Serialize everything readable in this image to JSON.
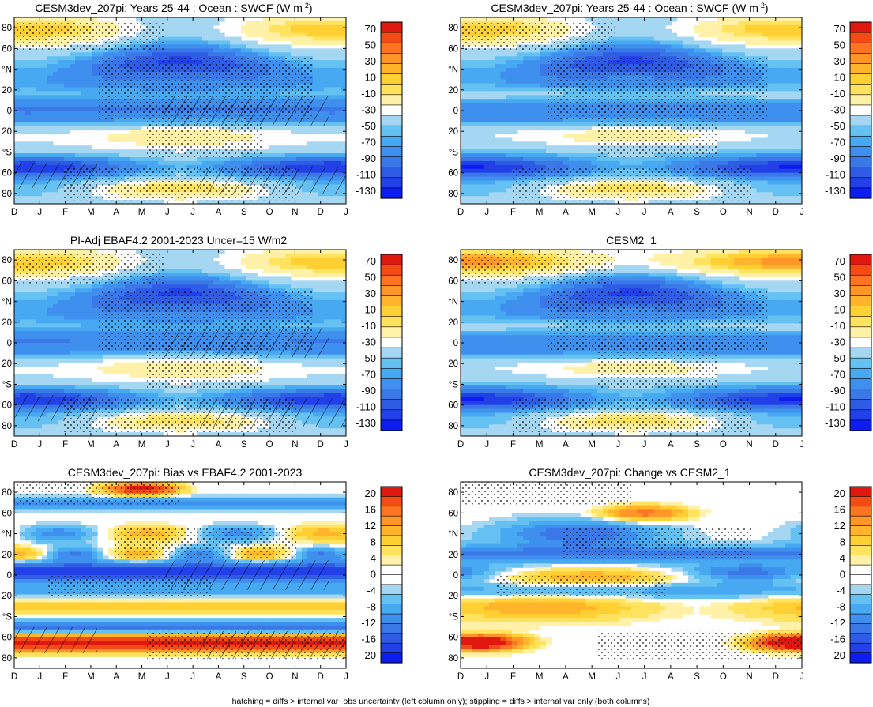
{
  "footer": "hatching = diffs > internal var+obs uncertainty (left column only); stippling = diffs > internal var only (both columns)",
  "months": [
    "D",
    "J",
    "F",
    "M",
    "A",
    "M",
    "J",
    "J",
    "A",
    "S",
    "O",
    "N",
    "D",
    "J"
  ],
  "lat_labels": [
    "80",
    "60",
    "°N",
    "20",
    "0",
    "20",
    "°S",
    "60",
    "80"
  ],
  "palettes": {
    "clim": [
      "#0d1cf0",
      "#2240e8",
      "#2e5ce5",
      "#3a78e8",
      "#3f90ee",
      "#47a9f2",
      "#64c1f2",
      "#a5d7f2",
      "#ffffff",
      "#fff2a8",
      "#ffe35f",
      "#ffd033",
      "#ffb42b",
      "#ff9626",
      "#ff7420",
      "#f44b14",
      "#e01810"
    ],
    "diff": [
      "#0d1cf0",
      "#2240e8",
      "#2e5ce5",
      "#3a78e8",
      "#3f90ee",
      "#47a9f2",
      "#64c1f2",
      "#a5d7f2",
      "#ffffff",
      "#ffffff",
      "#fff2a8",
      "#ffe35f",
      "#ffd033",
      "#ffb42b",
      "#ff9626",
      "#ff7420",
      "#f44b14",
      "#e01810"
    ]
  },
  "panels": [
    {
      "id": "p1",
      "title": "CESM3dev_207pi: Years 25-44 : Ocean : SWCF (W m",
      "title_sup": "-2",
      "title_end": ")",
      "col": 0,
      "row": 0,
      "kind": "clim",
      "variant": 0,
      "hatch": true,
      "stipple": true
    },
    {
      "id": "p2",
      "title": "CESM3dev_207pi: Years 25-44 : Ocean : SWCF (W m",
      "title_sup": "-2",
      "title_end": ")",
      "col": 1,
      "row": 0,
      "kind": "clim",
      "variant": 1,
      "hatch": false,
      "stipple": true
    },
    {
      "id": "p3",
      "title": "PI-Adj EBAF4.2 2001-2023 Uncer=15 W/m2",
      "title_sup": "",
      "title_end": "",
      "col": 0,
      "row": 1,
      "kind": "clim",
      "variant": 2,
      "hatch": true,
      "stipple": true
    },
    {
      "id": "p4",
      "title": "CESM2_1",
      "title_sup": "",
      "title_end": "",
      "col": 1,
      "row": 1,
      "kind": "clim",
      "variant": 3,
      "hatch": false,
      "stipple": true
    },
    {
      "id": "p5",
      "title": "CESM3dev_207pi: Bias vs EBAF4.2 2001-2023",
      "title_sup": "",
      "title_end": "",
      "col": 0,
      "row": 2,
      "kind": "diff",
      "variant": 4,
      "hatch": true,
      "stipple": true
    },
    {
      "id": "p6",
      "title": "CESM3dev_207pi: Change vs CESM2_1",
      "title_sup": "",
      "title_end": "",
      "col": 1,
      "row": 2,
      "kind": "diff",
      "variant": 5,
      "hatch": false,
      "stipple": true
    }
  ],
  "colorbars": [
    {
      "id": "cb1",
      "labels": [
        "70",
        "50",
        "30",
        "10",
        "-10",
        "-30",
        "-50",
        "-70",
        "-90",
        "-110",
        "-130"
      ]
    },
    {
      "id": "cb2",
      "labels": [
        "70",
        "50",
        "30",
        "10",
        "-10",
        "-30",
        "-50",
        "-70",
        "-90",
        "-110",
        "-130"
      ]
    },
    {
      "id": "cb3",
      "labels": [
        "70",
        "50",
        "30",
        "10",
        "-10",
        "-30",
        "-50",
        "-70",
        "-90",
        "-110",
        "-130"
      ]
    },
    {
      "id": "cb4",
      "labels": [
        "70",
        "50",
        "30",
        "10",
        "-10",
        "-30",
        "-50",
        "-70",
        "-90",
        "-110",
        "-130"
      ]
    },
    {
      "id": "cb5",
      "labels": [
        "20",
        "16",
        "12",
        "8",
        "4",
        "0",
        "-4",
        "-8",
        "-12",
        "-16",
        "-20"
      ]
    },
    {
      "id": "cb6",
      "labels": [
        "20",
        "16",
        "12",
        "8",
        "4",
        "0",
        "-4",
        "-8",
        "-12",
        "-16",
        "-20"
      ]
    }
  ],
  "chart_data": [
    {
      "type": "heatmap",
      "panel": "p1",
      "title": "CESM3dev_207pi: Years 25-44 : Ocean : SWCF (W m-2)",
      "x": [
        "D",
        "J",
        "F",
        "M",
        "A",
        "M",
        "J",
        "J",
        "A",
        "S",
        "O",
        "N",
        "D",
        "J"
      ],
      "y_ticks": [
        "80",
        "60",
        "°N",
        "20",
        "0",
        "20",
        "°S",
        "60",
        "80"
      ],
      "colorbar": [
        70,
        50,
        30,
        10,
        -10,
        -30,
        -50,
        -70,
        -90,
        -110,
        -130
      ]
    },
    {
      "type": "heatmap",
      "panel": "p2",
      "title": "CESM3dev_207pi: Years 25-44 : Ocean : SWCF (W m-2)",
      "x": [
        "D",
        "J",
        "F",
        "M",
        "A",
        "M",
        "J",
        "J",
        "A",
        "S",
        "O",
        "N",
        "D",
        "J"
      ],
      "y_ticks": [
        "80",
        "60",
        "°N",
        "20",
        "0",
        "20",
        "°S",
        "60",
        "80"
      ],
      "colorbar": [
        70,
        50,
        30,
        10,
        -10,
        -30,
        -50,
        -70,
        -90,
        -110,
        -130
      ]
    },
    {
      "type": "heatmap",
      "panel": "p3",
      "title": "PI-Adj EBAF4.2 2001-2023 Uncer=15 W/m2",
      "x": [
        "D",
        "J",
        "F",
        "M",
        "A",
        "M",
        "J",
        "J",
        "A",
        "S",
        "O",
        "N",
        "D",
        "J"
      ],
      "y_ticks": [
        "80",
        "60",
        "°N",
        "20",
        "0",
        "20",
        "°S",
        "60",
        "80"
      ],
      "colorbar": [
        70,
        50,
        30,
        10,
        -10,
        -30,
        -50,
        -70,
        -90,
        -110,
        -130
      ]
    },
    {
      "type": "heatmap",
      "panel": "p4",
      "title": "CESM2_1",
      "x": [
        "D",
        "J",
        "F",
        "M",
        "A",
        "M",
        "J",
        "J",
        "A",
        "S",
        "O",
        "N",
        "D",
        "J"
      ],
      "y_ticks": [
        "80",
        "60",
        "°N",
        "20",
        "0",
        "20",
        "°S",
        "60",
        "80"
      ],
      "colorbar": [
        70,
        50,
        30,
        10,
        -10,
        -30,
        -50,
        -70,
        -90,
        -110,
        -130
      ]
    },
    {
      "type": "heatmap",
      "panel": "p5",
      "title": "CESM3dev_207pi: Bias vs EBAF4.2 2001-2023",
      "x": [
        "D",
        "J",
        "F",
        "M",
        "A",
        "M",
        "J",
        "J",
        "A",
        "S",
        "O",
        "N",
        "D",
        "J"
      ],
      "y_ticks": [
        "80",
        "60",
        "°N",
        "20",
        "0",
        "20",
        "°S",
        "60",
        "80"
      ],
      "colorbar": [
        20,
        16,
        12,
        8,
        4,
        0,
        -4,
        -8,
        -12,
        -16,
        -20
      ]
    },
    {
      "type": "heatmap",
      "panel": "p6",
      "title": "CESM3dev_207pi: Change vs CESM2_1",
      "x": [
        "D",
        "J",
        "F",
        "M",
        "A",
        "M",
        "J",
        "J",
        "A",
        "S",
        "O",
        "N",
        "D",
        "J"
      ],
      "y_ticks": [
        "80",
        "60",
        "°N",
        "20",
        "0",
        "20",
        "°S",
        "60",
        "80"
      ],
      "colorbar": [
        20,
        16,
        12,
        8,
        4,
        0,
        -4,
        -8,
        -12,
        -16,
        -20
      ]
    }
  ]
}
